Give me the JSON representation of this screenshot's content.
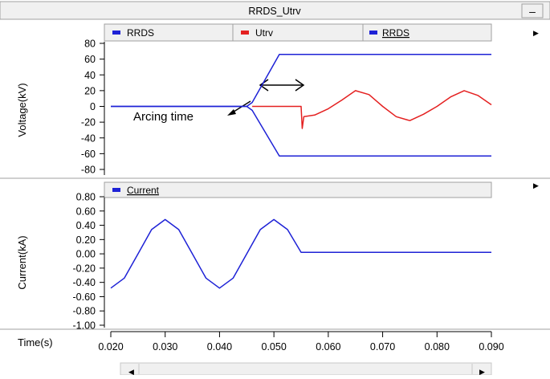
{
  "window": {
    "title": "RRDS_Utrv",
    "minimize_label": "–"
  },
  "colors": {
    "blue": "#1e22d6",
    "red": "#e42020",
    "panel": "#f0f0f0",
    "border": "#a0a0a0"
  },
  "scrollbar": {
    "left_arrow": "◀",
    "right_arrow": "▶"
  },
  "panel_menu_arrow": "▶",
  "x_axis": {
    "label": "Time(s)",
    "ticks": [
      0.02,
      0.03,
      0.04,
      0.05,
      0.06,
      0.07,
      0.08,
      0.09
    ],
    "tick_labels": [
      "0.020",
      "0.030",
      "0.040",
      "0.050",
      "0.060",
      "0.070",
      "0.080",
      "0.090"
    ],
    "xlim": [
      0.02,
      0.09
    ]
  },
  "chart_data": [
    {
      "type": "line",
      "ylabel": "Voltage(kV)",
      "ylim": [
        -80,
        80
      ],
      "yticks": [
        80,
        60,
        40,
        20,
        0,
        -20,
        -40,
        -60,
        -80
      ],
      "ytick_labels": [
        "80",
        "60",
        "40",
        "20",
        "0",
        "-20",
        "-40",
        "-60",
        "-80"
      ],
      "legend": [
        "RRDS",
        "Utrv",
        "RRDS"
      ],
      "annotation": "Arcing time",
      "series": [
        {
          "name": "RRDS",
          "color": "#1e22d6",
          "points": [
            [
              0.02,
              0
            ],
            [
              0.045,
              0
            ],
            [
              0.046,
              5
            ],
            [
              0.051,
              66
            ],
            [
              0.09,
              66
            ]
          ]
        },
        {
          "name": "RRDS",
          "color": "#1e22d6",
          "points": [
            [
              0.02,
              0
            ],
            [
              0.045,
              0
            ],
            [
              0.046,
              -5
            ],
            [
              0.051,
              -63
            ],
            [
              0.09,
              -63
            ]
          ]
        },
        {
          "name": "Utrv",
          "color": "#e42020",
          "points": [
            [
              0.046,
              0
            ],
            [
              0.055,
              0
            ],
            [
              0.0552,
              -28
            ],
            [
              0.0555,
              -13
            ],
            [
              0.0575,
              -11
            ],
            [
              0.06,
              -3
            ],
            [
              0.0625,
              8
            ],
            [
              0.065,
              20
            ],
            [
              0.0675,
              15
            ],
            [
              0.07,
              0
            ],
            [
              0.0725,
              -13
            ],
            [
              0.075,
              -18
            ],
            [
              0.0775,
              -10
            ],
            [
              0.08,
              0
            ],
            [
              0.0825,
              12
            ],
            [
              0.085,
              20
            ],
            [
              0.0875,
              14
            ],
            [
              0.09,
              2
            ]
          ]
        }
      ]
    },
    {
      "type": "line",
      "ylabel": "Current(kA)",
      "ylim": [
        -1.0,
        0.8
      ],
      "yticks": [
        0.8,
        0.6,
        0.4,
        0.2,
        0,
        -0.2,
        -0.4,
        -0.6,
        -0.8,
        -1.0
      ],
      "ytick_labels": [
        "0.80",
        "0.60",
        "0.40",
        "0.20",
        "0.00",
        "-0.20",
        "-0.40",
        "-0.60",
        "-0.80",
        "-1.00"
      ],
      "legend": [
        "Current"
      ],
      "series": [
        {
          "name": "Current",
          "color": "#1e22d6",
          "points": [
            [
              0.02,
              -0.48
            ],
            [
              0.0225,
              -0.34
            ],
            [
              0.025,
              0
            ],
            [
              0.0275,
              0.34
            ],
            [
              0.03,
              0.48
            ],
            [
              0.0325,
              0.34
            ],
            [
              0.035,
              0
            ],
            [
              0.0375,
              -0.34
            ],
            [
              0.04,
              -0.48
            ],
            [
              0.0425,
              -0.34
            ],
            [
              0.045,
              0
            ],
            [
              0.0475,
              0.34
            ],
            [
              0.05,
              0.48
            ],
            [
              0.0525,
              0.34
            ],
            [
              0.055,
              0.02
            ],
            [
              0.09,
              0.02
            ]
          ]
        }
      ]
    }
  ]
}
